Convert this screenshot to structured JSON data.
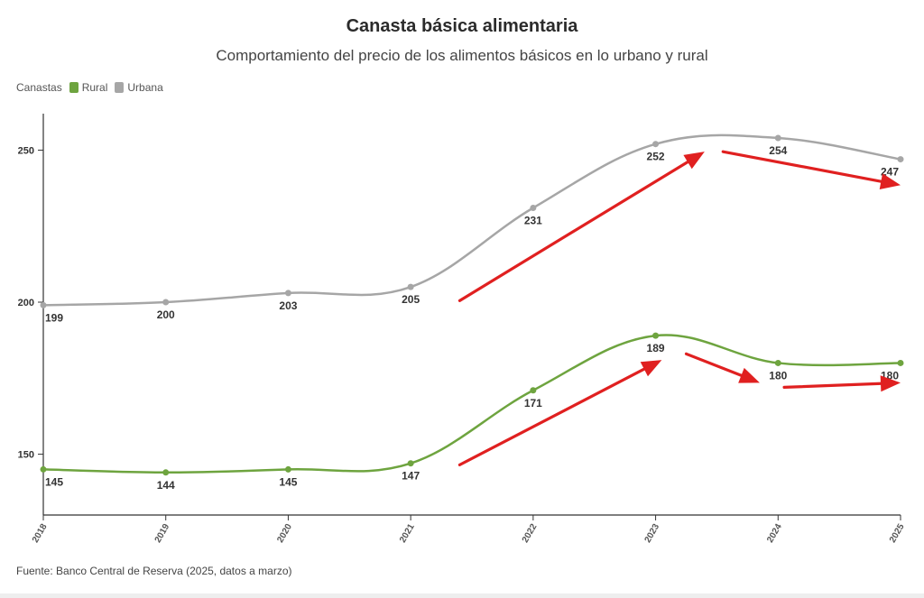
{
  "title": "Canasta básica alimentaria",
  "subtitle": "Comportamiento del precio de los alimentos básicos en lo urbano y rural",
  "legend": {
    "title": "Canastas",
    "items": [
      {
        "label": "Rural",
        "color": "#6ea43f"
      },
      {
        "label": "Urbana",
        "color": "#a6a6a6"
      }
    ]
  },
  "source": "Fuente: Banco Central de Reserva (2025, datos a marzo)",
  "chart_data": {
    "type": "line",
    "x": [
      "2018",
      "2019",
      "2020",
      "2021",
      "2022",
      "2023",
      "2024",
      "2025"
    ],
    "series": [
      {
        "name": "Urbana",
        "color": "#a6a6a6",
        "values": [
          199,
          200,
          203,
          205,
          231,
          252,
          254,
          247
        ]
      },
      {
        "name": "Rural",
        "color": "#6ea43f",
        "values": [
          145,
          144,
          145,
          147,
          171,
          189,
          180,
          180
        ]
      }
    ],
    "yticks": [
      150,
      200,
      250
    ],
    "ylim": [
      130,
      262
    ],
    "legend_position": "top-left",
    "grid": false,
    "annotations": {
      "arrow_color": "#e02020",
      "arrows": [
        {
          "from": [
            "2021.4",
            200.5
          ],
          "to": [
            "2023.4",
            249.5
          ]
        },
        {
          "from": [
            "2023.55",
            249.5
          ],
          "to": [
            "2025",
            238.5
          ]
        },
        {
          "from": [
            "2021.4",
            146.5
          ],
          "to": [
            "2023.05",
            181
          ]
        },
        {
          "from": [
            "2023.25",
            183
          ],
          "to": [
            "2023.85",
            173.5
          ]
        },
        {
          "from": [
            "2024.05",
            172
          ],
          "to": [
            "2025",
            173.5
          ]
        }
      ]
    }
  }
}
